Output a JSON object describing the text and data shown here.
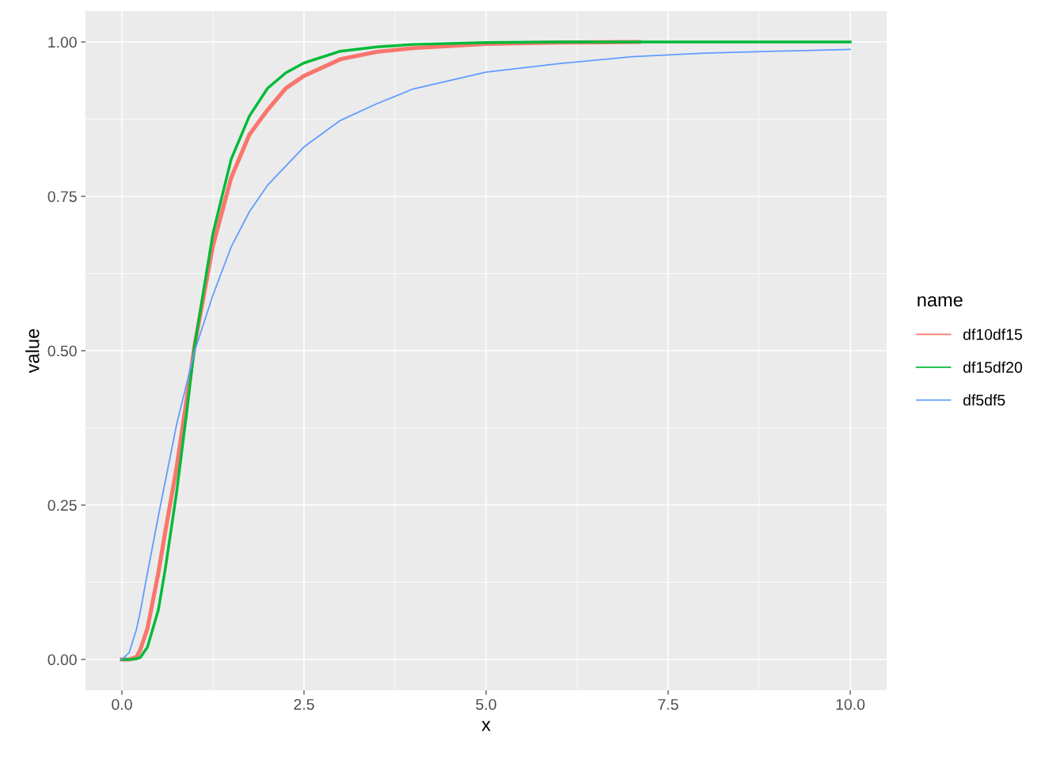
{
  "chart_data": {
    "type": "line",
    "xlabel": "x",
    "ylabel": "value",
    "legend_title": "name",
    "xlim": [
      -0.5,
      10.5
    ],
    "ylim": [
      -0.05,
      1.05
    ],
    "xticks": [
      {
        "value": 0,
        "label": "0.0"
      },
      {
        "value": 2.5,
        "label": "2.5"
      },
      {
        "value": 5,
        "label": "5.0"
      },
      {
        "value": 7.5,
        "label": "7.5"
      },
      {
        "value": 10,
        "label": "10.0"
      }
    ],
    "yticks": [
      {
        "value": 0,
        "label": "0.00"
      },
      {
        "value": 0.25,
        "label": "0.25"
      },
      {
        "value": 0.5,
        "label": "0.50"
      },
      {
        "value": 0.75,
        "label": "0.75"
      },
      {
        "value": 1,
        "label": "1.00"
      }
    ],
    "grid": true,
    "legend": "right",
    "marker": "none",
    "line_style": "solid",
    "series": [
      {
        "name": "df10df15",
        "color": "#f8766d",
        "x": [
          0,
          0.1,
          0.2,
          0.25,
          0.35,
          0.5,
          0.6,
          0.75,
          0.9,
          1,
          1.25,
          1.5,
          1.75,
          2,
          2.25,
          2.5,
          3,
          3.5,
          4,
          5,
          6,
          7.1
        ],
        "values": [
          0,
          0,
          0.004,
          0.015,
          0.05,
          0.14,
          0.21,
          0.31,
          0.43,
          0.51,
          0.67,
          0.78,
          0.85,
          0.89,
          0.925,
          0.945,
          0.972,
          0.984,
          0.99,
          0.997,
          0.999,
          1
        ]
      },
      {
        "name": "df15df20",
        "color": "#00ba38",
        "x": [
          0,
          0.1,
          0.2,
          0.25,
          0.35,
          0.5,
          0.6,
          0.75,
          0.9,
          1,
          1.25,
          1.5,
          1.75,
          2,
          2.25,
          2.5,
          3,
          3.5,
          4,
          5,
          6,
          8,
          10
        ],
        "values": [
          0,
          0,
          0.001,
          0.003,
          0.02,
          0.08,
          0.15,
          0.27,
          0.41,
          0.51,
          0.69,
          0.81,
          0.88,
          0.925,
          0.95,
          0.966,
          0.985,
          0.992,
          0.996,
          0.999,
          1,
          1,
          1
        ]
      },
      {
        "name": "df5df5",
        "color": "#619cff",
        "x": [
          0,
          0.1,
          0.2,
          0.25,
          0.33,
          0.5,
          0.75,
          1,
          1.25,
          1.5,
          1.75,
          2,
          2.5,
          3,
          3.5,
          4,
          5,
          6,
          7,
          8,
          9,
          10
        ],
        "values": [
          0,
          0.011,
          0.049,
          0.076,
          0.127,
          0.232,
          0.38,
          0.5,
          0.59,
          0.668,
          0.725,
          0.768,
          0.83,
          0.873,
          0.9,
          0.924,
          0.951,
          0.965,
          0.976,
          0.982,
          0.985,
          0.988
        ]
      }
    ]
  }
}
